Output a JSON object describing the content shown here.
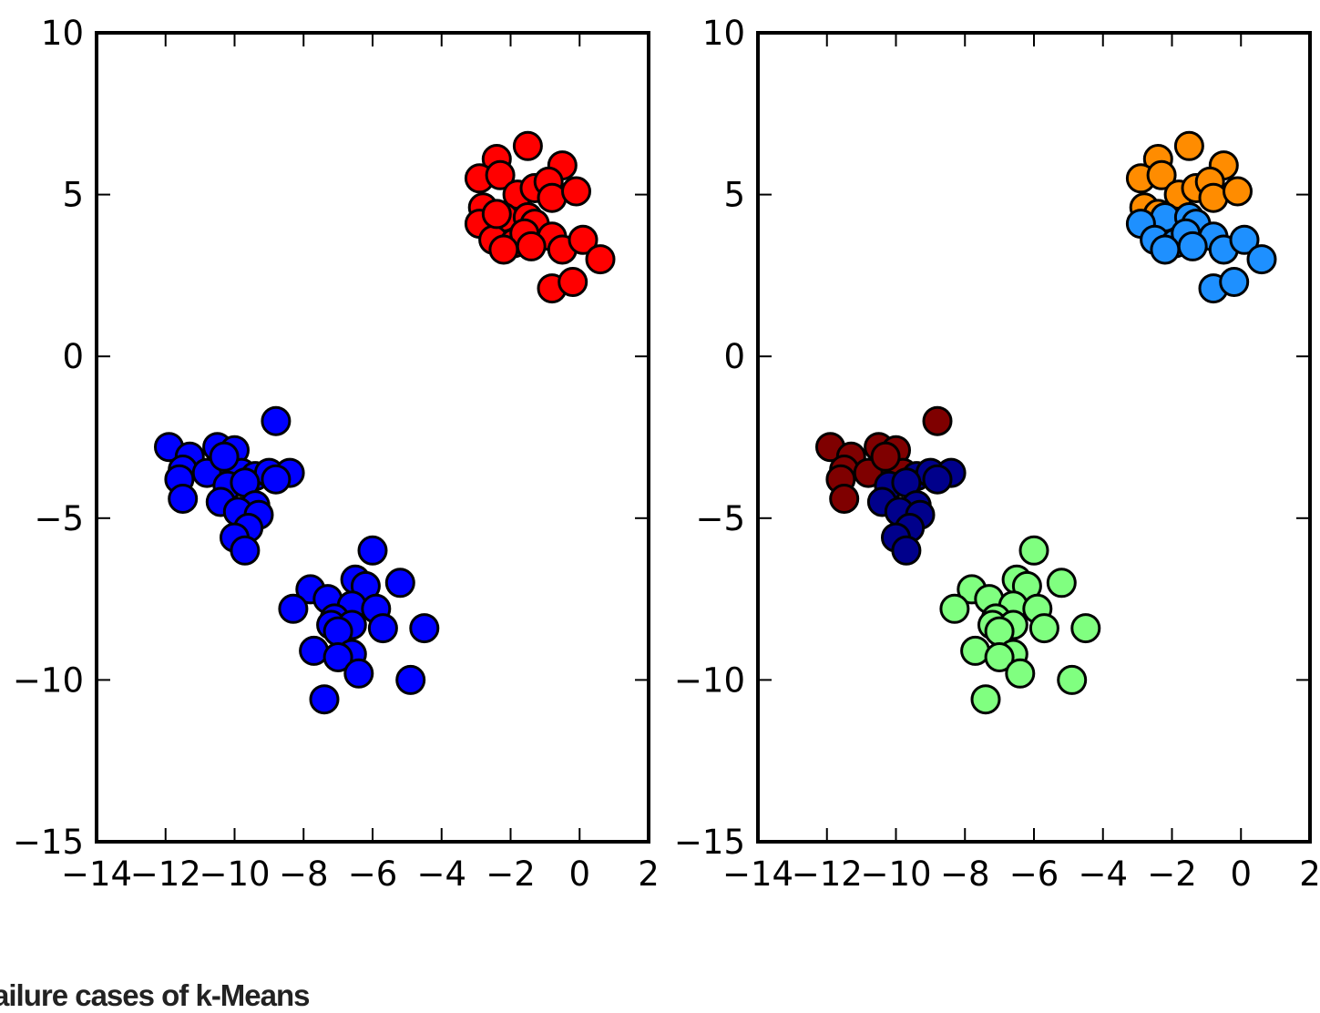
{
  "caption": "ailure cases of k-Means",
  "chart_data": [
    {
      "type": "scatter",
      "title": "",
      "xlabel": "",
      "ylabel": "",
      "xlim": [
        -14,
        2
      ],
      "ylim": [
        -15,
        10
      ],
      "xticks": [
        -14,
        -12,
        -10,
        -8,
        -6,
        -4,
        -2,
        0,
        2
      ],
      "yticks": [
        -15,
        -10,
        -5,
        0,
        5,
        10
      ],
      "xtick_labels": [
        "−14",
        "−12",
        "−10",
        "−8",
        "−6",
        "−4",
        "−2",
        "0",
        "2"
      ],
      "ytick_labels": [
        "−15",
        "−10",
        "−5",
        "0",
        "5",
        "10"
      ],
      "grid": false,
      "series": [
        {
          "color": "#ff0000",
          "points": [
            [
              -2.4,
              6.1
            ],
            [
              -1.5,
              6.5
            ],
            [
              -2.9,
              5.5
            ],
            [
              -2.3,
              5.6
            ],
            [
              -1.8,
              5.0
            ],
            [
              -1.3,
              5.2
            ],
            [
              -0.5,
              5.9
            ],
            [
              -0.9,
              5.4
            ],
            [
              -0.8,
              4.9
            ],
            [
              -0.1,
              5.1
            ],
            [
              -2.8,
              4.6
            ],
            [
              -2.2,
              4.3
            ],
            [
              -1.5,
              4.3
            ],
            [
              -1.3,
              4.1
            ],
            [
              -2.9,
              4.1
            ],
            [
              -2.5,
              3.6
            ],
            [
              -1.9,
              3.5
            ],
            [
              -1.6,
              3.8
            ],
            [
              -0.8,
              3.7
            ],
            [
              -0.5,
              3.3
            ],
            [
              0.1,
              3.6
            ],
            [
              0.6,
              3.0
            ],
            [
              -2.2,
              3.3
            ],
            [
              -0.8,
              2.1
            ],
            [
              -0.2,
              2.3
            ],
            [
              -2.4,
              4.4
            ],
            [
              -1.4,
              3.4
            ]
          ]
        },
        {
          "color": "#0000ff",
          "points": [
            [
              -8.8,
              -2.0
            ],
            [
              -11.9,
              -2.8
            ],
            [
              -11.3,
              -3.1
            ],
            [
              -10.5,
              -2.8
            ],
            [
              -10.0,
              -2.9
            ],
            [
              -10.3,
              -3.2
            ],
            [
              -11.5,
              -3.5
            ],
            [
              -11.6,
              -3.8
            ],
            [
              -10.8,
              -3.6
            ],
            [
              -9.8,
              -3.6
            ],
            [
              -9.4,
              -3.7
            ],
            [
              -9.0,
              -3.6
            ],
            [
              -8.4,
              -3.6
            ],
            [
              -10.2,
              -4.0
            ],
            [
              -9.7,
              -3.9
            ],
            [
              -11.5,
              -4.4
            ],
            [
              -10.4,
              -4.5
            ],
            [
              -9.4,
              -4.6
            ],
            [
              -9.9,
              -4.8
            ],
            [
              -9.3,
              -4.9
            ],
            [
              -9.6,
              -5.3
            ],
            [
              -10.0,
              -5.6
            ],
            [
              -9.7,
              -6.0
            ],
            [
              -8.8,
              -3.8
            ],
            [
              -10.3,
              -3.1
            ],
            [
              -6.0,
              -6.0
            ],
            [
              -7.8,
              -7.2
            ],
            [
              -6.5,
              -6.9
            ],
            [
              -7.3,
              -7.5
            ],
            [
              -6.2,
              -7.1
            ],
            [
              -5.2,
              -7.0
            ],
            [
              -8.3,
              -7.8
            ],
            [
              -6.6,
              -7.7
            ],
            [
              -5.9,
              -7.8
            ],
            [
              -7.1,
              -8.1
            ],
            [
              -7.2,
              -8.3
            ],
            [
              -6.6,
              -8.3
            ],
            [
              -7.0,
              -8.5
            ],
            [
              -5.7,
              -8.4
            ],
            [
              -4.5,
              -8.4
            ],
            [
              -7.7,
              -9.1
            ],
            [
              -6.6,
              -9.2
            ],
            [
              -7.0,
              -9.3
            ],
            [
              -6.4,
              -9.8
            ],
            [
              -4.9,
              -10.0
            ],
            [
              -7.4,
              -10.6
            ]
          ]
        }
      ]
    },
    {
      "type": "scatter",
      "title": "",
      "xlabel": "",
      "ylabel": "",
      "xlim": [
        -14,
        2
      ],
      "ylim": [
        -15,
        10
      ],
      "xticks": [
        -14,
        -12,
        -10,
        -8,
        -6,
        -4,
        -2,
        0,
        2
      ],
      "yticks": [
        -15,
        -10,
        -5,
        0,
        5,
        10
      ],
      "xtick_labels": [
        "−14",
        "−12",
        "−10",
        "−8",
        "−6",
        "−4",
        "−2",
        "0",
        "2"
      ],
      "ytick_labels": [
        "−15",
        "−10",
        "−5",
        "0",
        "5",
        "10"
      ],
      "grid": false,
      "series": [
        {
          "color": "#ff8c00",
          "points": [
            [
              -2.4,
              6.1
            ],
            [
              -1.5,
              6.5
            ],
            [
              -2.9,
              5.5
            ],
            [
              -2.3,
              5.6
            ],
            [
              -1.8,
              5.0
            ],
            [
              -1.3,
              5.2
            ],
            [
              -0.5,
              5.9
            ],
            [
              -0.9,
              5.4
            ],
            [
              -0.8,
              4.9
            ],
            [
              -0.1,
              5.1
            ],
            [
              -2.8,
              4.6
            ],
            [
              -2.4,
              4.4
            ]
          ]
        },
        {
          "color": "#1e90ff",
          "points": [
            [
              -2.2,
              4.3
            ],
            [
              -1.5,
              4.3
            ],
            [
              -1.3,
              4.1
            ],
            [
              -2.9,
              4.1
            ],
            [
              -2.5,
              3.6
            ],
            [
              -1.9,
              3.5
            ],
            [
              -1.6,
              3.8
            ],
            [
              -0.8,
              3.7
            ],
            [
              -0.5,
              3.3
            ],
            [
              0.1,
              3.6
            ],
            [
              0.6,
              3.0
            ],
            [
              -2.2,
              3.3
            ],
            [
              -0.8,
              2.1
            ],
            [
              -0.2,
              2.3
            ],
            [
              -1.4,
              3.4
            ]
          ]
        },
        {
          "color": "#7f0000",
          "points": [
            [
              -8.8,
              -2.0
            ],
            [
              -11.9,
              -2.8
            ],
            [
              -11.3,
              -3.1
            ],
            [
              -10.5,
              -2.8
            ],
            [
              -10.0,
              -2.9
            ],
            [
              -10.3,
              -3.2
            ],
            [
              -11.5,
              -3.5
            ],
            [
              -11.6,
              -3.8
            ],
            [
              -10.8,
              -3.6
            ],
            [
              -9.8,
              -3.6
            ],
            [
              -11.5,
              -4.4
            ],
            [
              -10.3,
              -3.1
            ]
          ]
        },
        {
          "color": "#00008b",
          "points": [
            [
              -9.4,
              -3.7
            ],
            [
              -9.0,
              -3.6
            ],
            [
              -8.4,
              -3.6
            ],
            [
              -10.2,
              -4.0
            ],
            [
              -9.7,
              -3.9
            ],
            [
              -10.4,
              -4.5
            ],
            [
              -9.4,
              -4.6
            ],
            [
              -9.9,
              -4.8
            ],
            [
              -9.3,
              -4.9
            ],
            [
              -9.6,
              -5.3
            ],
            [
              -10.0,
              -5.6
            ],
            [
              -9.7,
              -6.0
            ],
            [
              -8.8,
              -3.8
            ]
          ]
        },
        {
          "color": "#80ff80",
          "points": [
            [
              -6.0,
              -6.0
            ],
            [
              -7.8,
              -7.2
            ],
            [
              -6.5,
              -6.9
            ],
            [
              -7.3,
              -7.5
            ],
            [
              -6.2,
              -7.1
            ],
            [
              -5.2,
              -7.0
            ],
            [
              -8.3,
              -7.8
            ],
            [
              -6.6,
              -7.7
            ],
            [
              -5.9,
              -7.8
            ],
            [
              -7.1,
              -8.1
            ],
            [
              -7.2,
              -8.3
            ],
            [
              -6.6,
              -8.3
            ],
            [
              -7.0,
              -8.5
            ],
            [
              -5.7,
              -8.4
            ],
            [
              -4.5,
              -8.4
            ],
            [
              -7.7,
              -9.1
            ],
            [
              -6.6,
              -9.2
            ],
            [
              -7.0,
              -9.3
            ],
            [
              -6.4,
              -9.8
            ],
            [
              -4.9,
              -10.0
            ],
            [
              -7.4,
              -10.6
            ]
          ]
        }
      ]
    }
  ]
}
